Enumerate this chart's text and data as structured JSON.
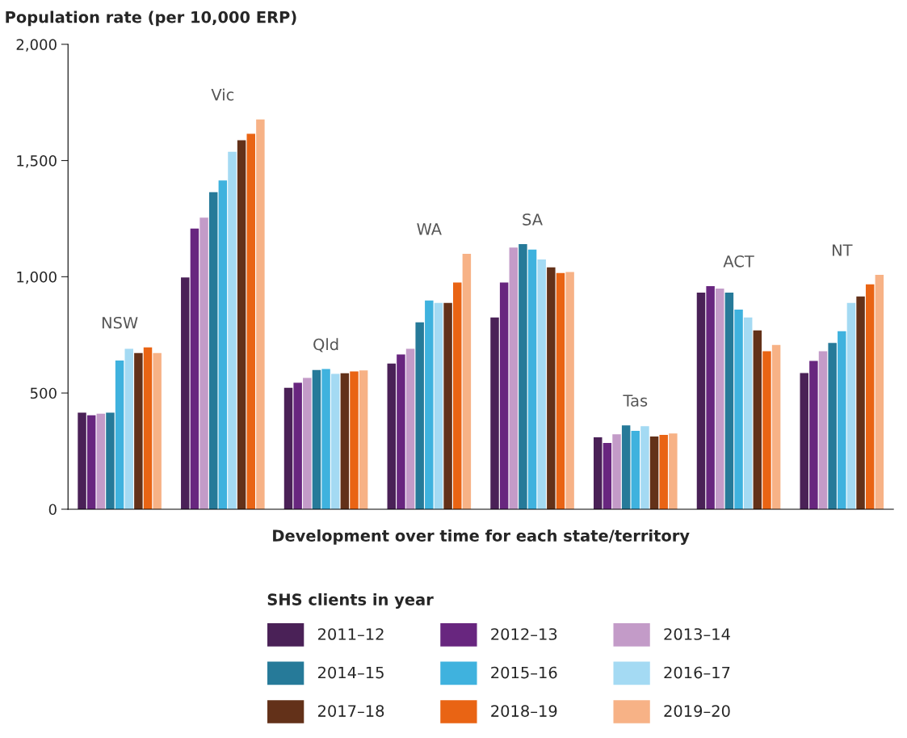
{
  "chart_data": {
    "type": "bar",
    "ylabel": "Population rate (per 10,000 ERP)",
    "xlabel": "Development over time for each state/territory",
    "legend_title": "SHS clients in year",
    "legend": "bottom",
    "grid": false,
    "tick_labels": "y",
    "categories": [
      "NSW",
      "Vic",
      "Qld",
      "WA",
      "SA",
      "Tas",
      "ACT",
      "NT"
    ],
    "ylim": [
      0,
      2000
    ],
    "yticks": [
      0,
      {
        "value": 500,
        "label": "500"
      },
      {
        "value": 1000,
        "label": "1,000"
      },
      {
        "value": 1500,
        "label": "1,500"
      },
      {
        "value": 2000,
        "label": "2,000"
      }
    ],
    "series": [
      {
        "name": "2011–12",
        "color": "#4a2157",
        "values": [
          415,
          997,
          522,
          627,
          825,
          309,
          932,
          586
        ]
      },
      {
        "name": "2012–13",
        "color": "#68267f",
        "values": [
          404,
          1207,
          544,
          666,
          975,
          285,
          960,
          638
        ]
      },
      {
        "name": "2013–14",
        "color": "#c39bc8",
        "values": [
          411,
          1254,
          565,
          690,
          1126,
          322,
          949,
          680
        ]
      },
      {
        "name": "2014–15",
        "color": "#267a99",
        "values": [
          415,
          1364,
          599,
          804,
          1140,
          361,
          932,
          715
        ]
      },
      {
        "name": "2015–16",
        "color": "#3fb2de",
        "values": [
          640,
          1414,
          603,
          898,
          1117,
          337,
          859,
          766
        ]
      },
      {
        "name": "2016–17",
        "color": "#a4daf3",
        "values": [
          690,
          1538,
          582,
          887,
          1074,
          357,
          825,
          887
        ]
      },
      {
        "name": "2017–18",
        "color": "#633119",
        "values": [
          672,
          1587,
          585,
          887,
          1040,
          313,
          769,
          915
        ]
      },
      {
        "name": "2018–19",
        "color": "#e96414",
        "values": [
          696,
          1615,
          593,
          975,
          1016,
          320,
          680,
          967
        ]
      },
      {
        "name": "2019–20",
        "color": "#f7b286",
        "values": [
          672,
          1677,
          597,
          1099,
          1020,
          326,
          707,
          1008
        ]
      }
    ]
  }
}
